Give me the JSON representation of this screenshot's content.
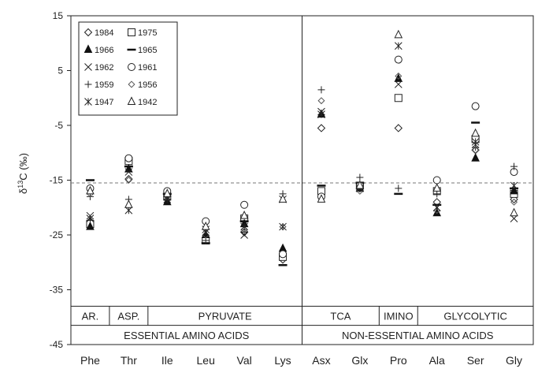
{
  "chart_data": {
    "type": "scatter",
    "ylabel": "δ13C (‰)",
    "ylabel_main": "δ",
    "ylabel_sup": "13",
    "ylabel_rest": "C (‰)",
    "ylim": [
      -45,
      15
    ],
    "yticks": [
      "15",
      "5",
      "-5",
      "-15",
      "-25",
      "-35",
      "-45"
    ],
    "categories": [
      "Phe",
      "Thr",
      "Ile",
      "Leu",
      "Val",
      "Lys",
      "Asx",
      "Glx",
      "Pro",
      "Ala",
      "Ser",
      "Gly"
    ],
    "reference_line": -15.5,
    "groups_top": [
      {
        "label": "AR.",
        "from": 0,
        "to": 0
      },
      {
        "label": "ASP.",
        "from": 1,
        "to": 1
      },
      {
        "label": "PYRUVATE",
        "from": 2,
        "to": 5
      },
      {
        "label": "TCA",
        "from": 6,
        "to": 7
      },
      {
        "label": "IMINO",
        "from": 8,
        "to": 8
      },
      {
        "label": "GLYCOLYTIC",
        "from": 9,
        "to": 11
      }
    ],
    "groups_bottom": [
      {
        "label": "ESSENTIAL AMINO ACIDS",
        "from": 0,
        "to": 5
      },
      {
        "label": "NON-ESSENTIAL AMINO ACIDS",
        "from": 6,
        "to": 11
      }
    ],
    "legend": [
      {
        "name": "1984",
        "marker": "diamond"
      },
      {
        "name": "1975",
        "marker": "square"
      },
      {
        "name": "1966",
        "marker": "triangle-filled"
      },
      {
        "name": "1965",
        "marker": "dash"
      },
      {
        "name": "1962",
        "marker": "x"
      },
      {
        "name": "1961",
        "marker": "circle"
      },
      {
        "name": "1959",
        "marker": "plus"
      },
      {
        "name": "1956",
        "marker": "diamond-small"
      },
      {
        "name": "1947",
        "marker": "star"
      },
      {
        "name": "1942",
        "marker": "triangle"
      }
    ],
    "series": [
      {
        "name": "1984",
        "marker": "diamond",
        "values": [
          -22.5,
          -14.8,
          -18.5,
          -25.5,
          -24.5,
          -29.5,
          -5.5,
          -16.5,
          -5.5,
          -19.0,
          -9.5,
          -18.5
        ]
      },
      {
        "name": "1975",
        "marker": "square",
        "values": [
          -23.0,
          -11.5,
          -18.0,
          -26.0,
          -22.0,
          -29.0,
          -17.0,
          -16.0,
          0.0,
          -17.0,
          -7.5,
          -17.5
        ]
      },
      {
        "name": "1966",
        "marker": "triangle-filled",
        "values": [
          -23.5,
          -13.0,
          -19.0,
          -25.0,
          -23.0,
          -27.5,
          -3.0,
          -16.5,
          3.5,
          -21.0,
          -11.0,
          -17.0
        ]
      },
      {
        "name": "1965",
        "marker": "dash",
        "values": [
          -15.0,
          -12.5,
          -17.5,
          -26.5,
          -22.5,
          -30.5,
          -16.0,
          -15.5,
          -17.5,
          -19.5,
          -4.5,
          -16.5
        ]
      },
      {
        "name": "1962",
        "marker": "x",
        "values": [
          -21.5,
          -13.5,
          -18.0,
          -24.0,
          -25.0,
          -18.5,
          -2.5,
          -16.0,
          2.5,
          -20.0,
          -8.5,
          -22.0
        ]
      },
      {
        "name": "1961",
        "marker": "circle",
        "values": [
          -16.5,
          -11.0,
          -17.0,
          -22.5,
          -19.5,
          -28.5,
          -18.0,
          -16.0,
          7.0,
          -15.0,
          -1.5,
          -13.5
        ]
      },
      {
        "name": "1959",
        "marker": "plus",
        "values": [
          -18.0,
          -18.5,
          -18.5,
          -26.0,
          -24.5,
          -17.5,
          1.5,
          -14.5,
          -16.5,
          -17.5,
          -9.0,
          -12.5
        ]
      },
      {
        "name": "1956",
        "marker": "diamond-small",
        "values": [
          -17.5,
          -15.0,
          -18.0,
          -25.0,
          -24.0,
          -23.5,
          -0.5,
          -17.0,
          4.0,
          -20.5,
          -9.5,
          -19.0
        ]
      },
      {
        "name": "1947",
        "marker": "star",
        "values": [
          -22.0,
          -20.5,
          -18.5,
          -24.5,
          -23.5,
          -23.5,
          -3.0,
          -16.5,
          9.5,
          -20.0,
          -8.0,
          -16.0
        ]
      },
      {
        "name": "1942",
        "marker": "triangle",
        "values": [
          -17.0,
          -19.5,
          -17.5,
          -23.5,
          -21.5,
          -18.5,
          -18.5,
          -16.0,
          11.5,
          -16.5,
          -6.5,
          -21.0
        ]
      }
    ]
  }
}
